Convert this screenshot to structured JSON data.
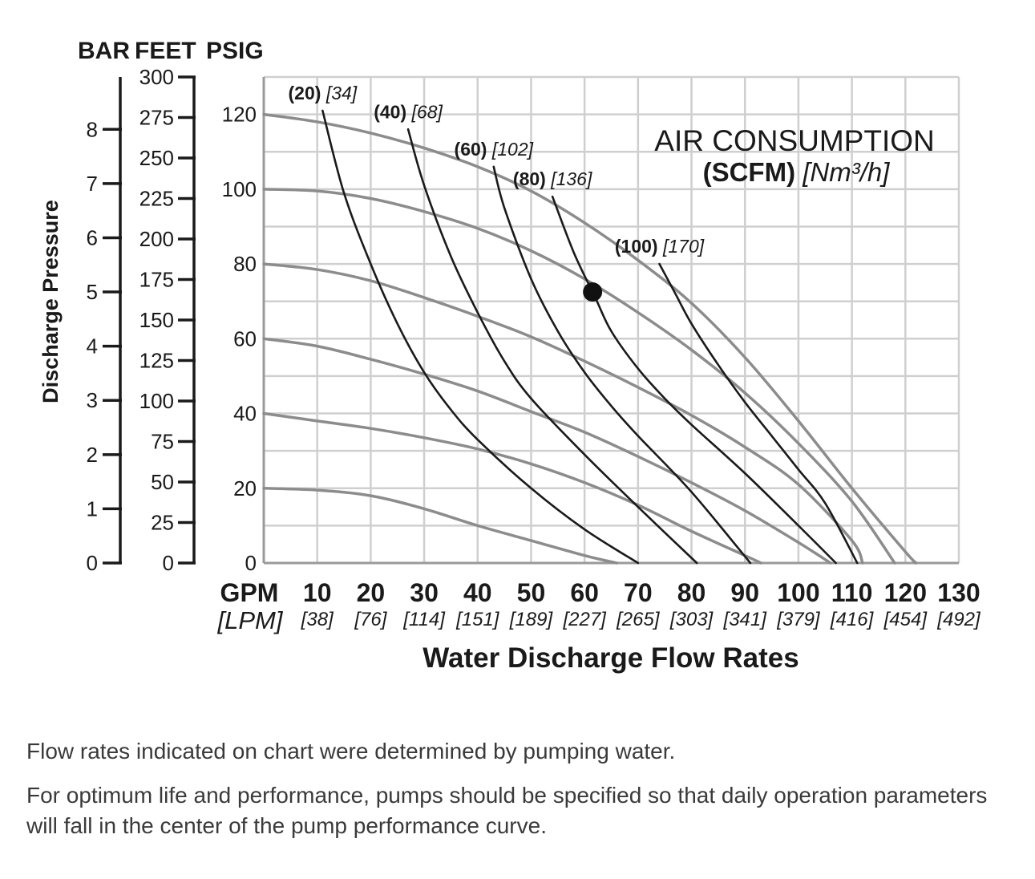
{
  "chart_data": {
    "type": "line",
    "axes": {
      "bar": {
        "header": "BAR",
        "ticks": [
          "0",
          "1",
          "2",
          "3",
          "4",
          "5",
          "6",
          "7",
          "8"
        ]
      },
      "feet": {
        "header": "FEET",
        "ticks": [
          "0",
          "25",
          "50",
          "75",
          "100",
          "125",
          "150",
          "175",
          "200",
          "225",
          "250",
          "275",
          "300"
        ]
      },
      "psig": {
        "header": "PSIG",
        "ticks": [
          "0",
          "20",
          "40",
          "60",
          "80",
          "100",
          "120"
        ]
      },
      "ylabel": "Discharge Pressure",
      "x": {
        "unit_top": "GPM",
        "unit_bottom": "[LPM]",
        "ticks": [
          "10",
          "20",
          "30",
          "40",
          "50",
          "60",
          "70",
          "80",
          "90",
          "100",
          "110",
          "120",
          "130"
        ],
        "ticks_lpm": [
          "[38]",
          "[76]",
          "[114]",
          "[151]",
          "[189]",
          "[227]",
          "[265]",
          "[303]",
          "[341]",
          "[379]",
          "[416]",
          "[454]",
          "[492]"
        ],
        "xlabel": "Water Discharge Flow Rates",
        "xlim": [
          0,
          130
        ]
      },
      "ylim_psig": [
        0,
        130
      ]
    },
    "legend_title": {
      "line1": "AIR CONSUMPTION",
      "line2_bold": "(SCFM)",
      "line2_italic": "[Nm³/h]"
    },
    "pressure_curves": {
      "color": "#8c8c8c",
      "series": [
        {
          "x": [
            0,
            10,
            20,
            30,
            40,
            50,
            60,
            66
          ],
          "y": [
            20,
            19.5,
            18,
            14.5,
            10,
            6,
            2,
            0
          ]
        },
        {
          "x": [
            0,
            10,
            20,
            30,
            40,
            50,
            60,
            70,
            80,
            90,
            93
          ],
          "y": [
            40,
            38,
            36,
            33.5,
            30.5,
            26.5,
            21.5,
            15.5,
            8.5,
            2,
            0
          ]
        },
        {
          "x": [
            0,
            10,
            20,
            30,
            40,
            50,
            60,
            70,
            80,
            90,
            100,
            106
          ],
          "y": [
            60,
            58,
            54.5,
            50.5,
            46,
            40.5,
            35,
            28.5,
            21.5,
            14,
            5.5,
            0
          ]
        },
        {
          "x": [
            0,
            10,
            20,
            30,
            40,
            50,
            60,
            70,
            80,
            90,
            100,
            110,
            112
          ],
          "y": [
            80,
            78.5,
            75.5,
            71,
            66,
            60.5,
            54,
            47,
            39.5,
            31,
            21,
            6,
            0
          ]
        },
        {
          "x": [
            0,
            10,
            20,
            30,
            40,
            50,
            60,
            70,
            80,
            90,
            100,
            110,
            118
          ],
          "y": [
            100,
            99.5,
            97.5,
            94,
            89.5,
            83.5,
            76,
            67,
            57,
            45.5,
            32,
            16.5,
            0
          ]
        },
        {
          "x": [
            0,
            10,
            20,
            30,
            40,
            50,
            60,
            70,
            80,
            90,
            100,
            110,
            120,
            122
          ],
          "y": [
            120,
            118,
            115,
            111,
            106,
            99.5,
            91,
            81,
            69.5,
            55,
            38,
            20,
            3,
            0
          ]
        }
      ]
    },
    "air_curves": {
      "color": "#1a1a1a",
      "series": [
        {
          "label_b": "(20)",
          "label_i": "[34]",
          "x": [
            11,
            15,
            20,
            25,
            30,
            35,
            40,
            50,
            60,
            70
          ],
          "y": [
            121,
            99,
            80,
            64,
            51,
            41,
            33,
            20,
            9,
            0
          ]
        },
        {
          "label_b": "(40)",
          "label_i": "[68]",
          "x": [
            27,
            30,
            35,
            40,
            45,
            50,
            60,
            70,
            81
          ],
          "y": [
            116,
            101,
            82,
            67,
            54,
            44,
            29,
            15,
            0
          ]
        },
        {
          "label_b": "(60)",
          "label_i": "[102]",
          "x": [
            43,
            45,
            50,
            55,
            60,
            65,
            70,
            80,
            91
          ],
          "y": [
            106,
            95,
            76,
            62,
            51,
            42,
            34,
            19,
            0
          ]
        },
        {
          "label_b": "(80)",
          "label_i": "[136]",
          "x": [
            54,
            58,
            62,
            65,
            70,
            75,
            80,
            90,
            100,
            107
          ],
          "y": [
            98,
            83,
            71,
            62,
            52,
            44,
            37,
            24,
            10,
            0
          ]
        },
        {
          "label_b": "(100)",
          "label_i": "[170]",
          "x": [
            74,
            77,
            80,
            85,
            90,
            95,
            100,
            105,
            111
          ],
          "y": [
            80,
            72,
            64,
            53,
            43,
            34,
            25,
            16,
            0
          ]
        }
      ]
    },
    "marker_point": {
      "x": 61.5,
      "y": 72.5
    }
  },
  "notes": [
    "Flow rates indicated on chart were determined by pumping water.",
    "For optimum life and performance, pumps should be specified so that daily operation parameters will fall in the center of the pump performance curve."
  ]
}
